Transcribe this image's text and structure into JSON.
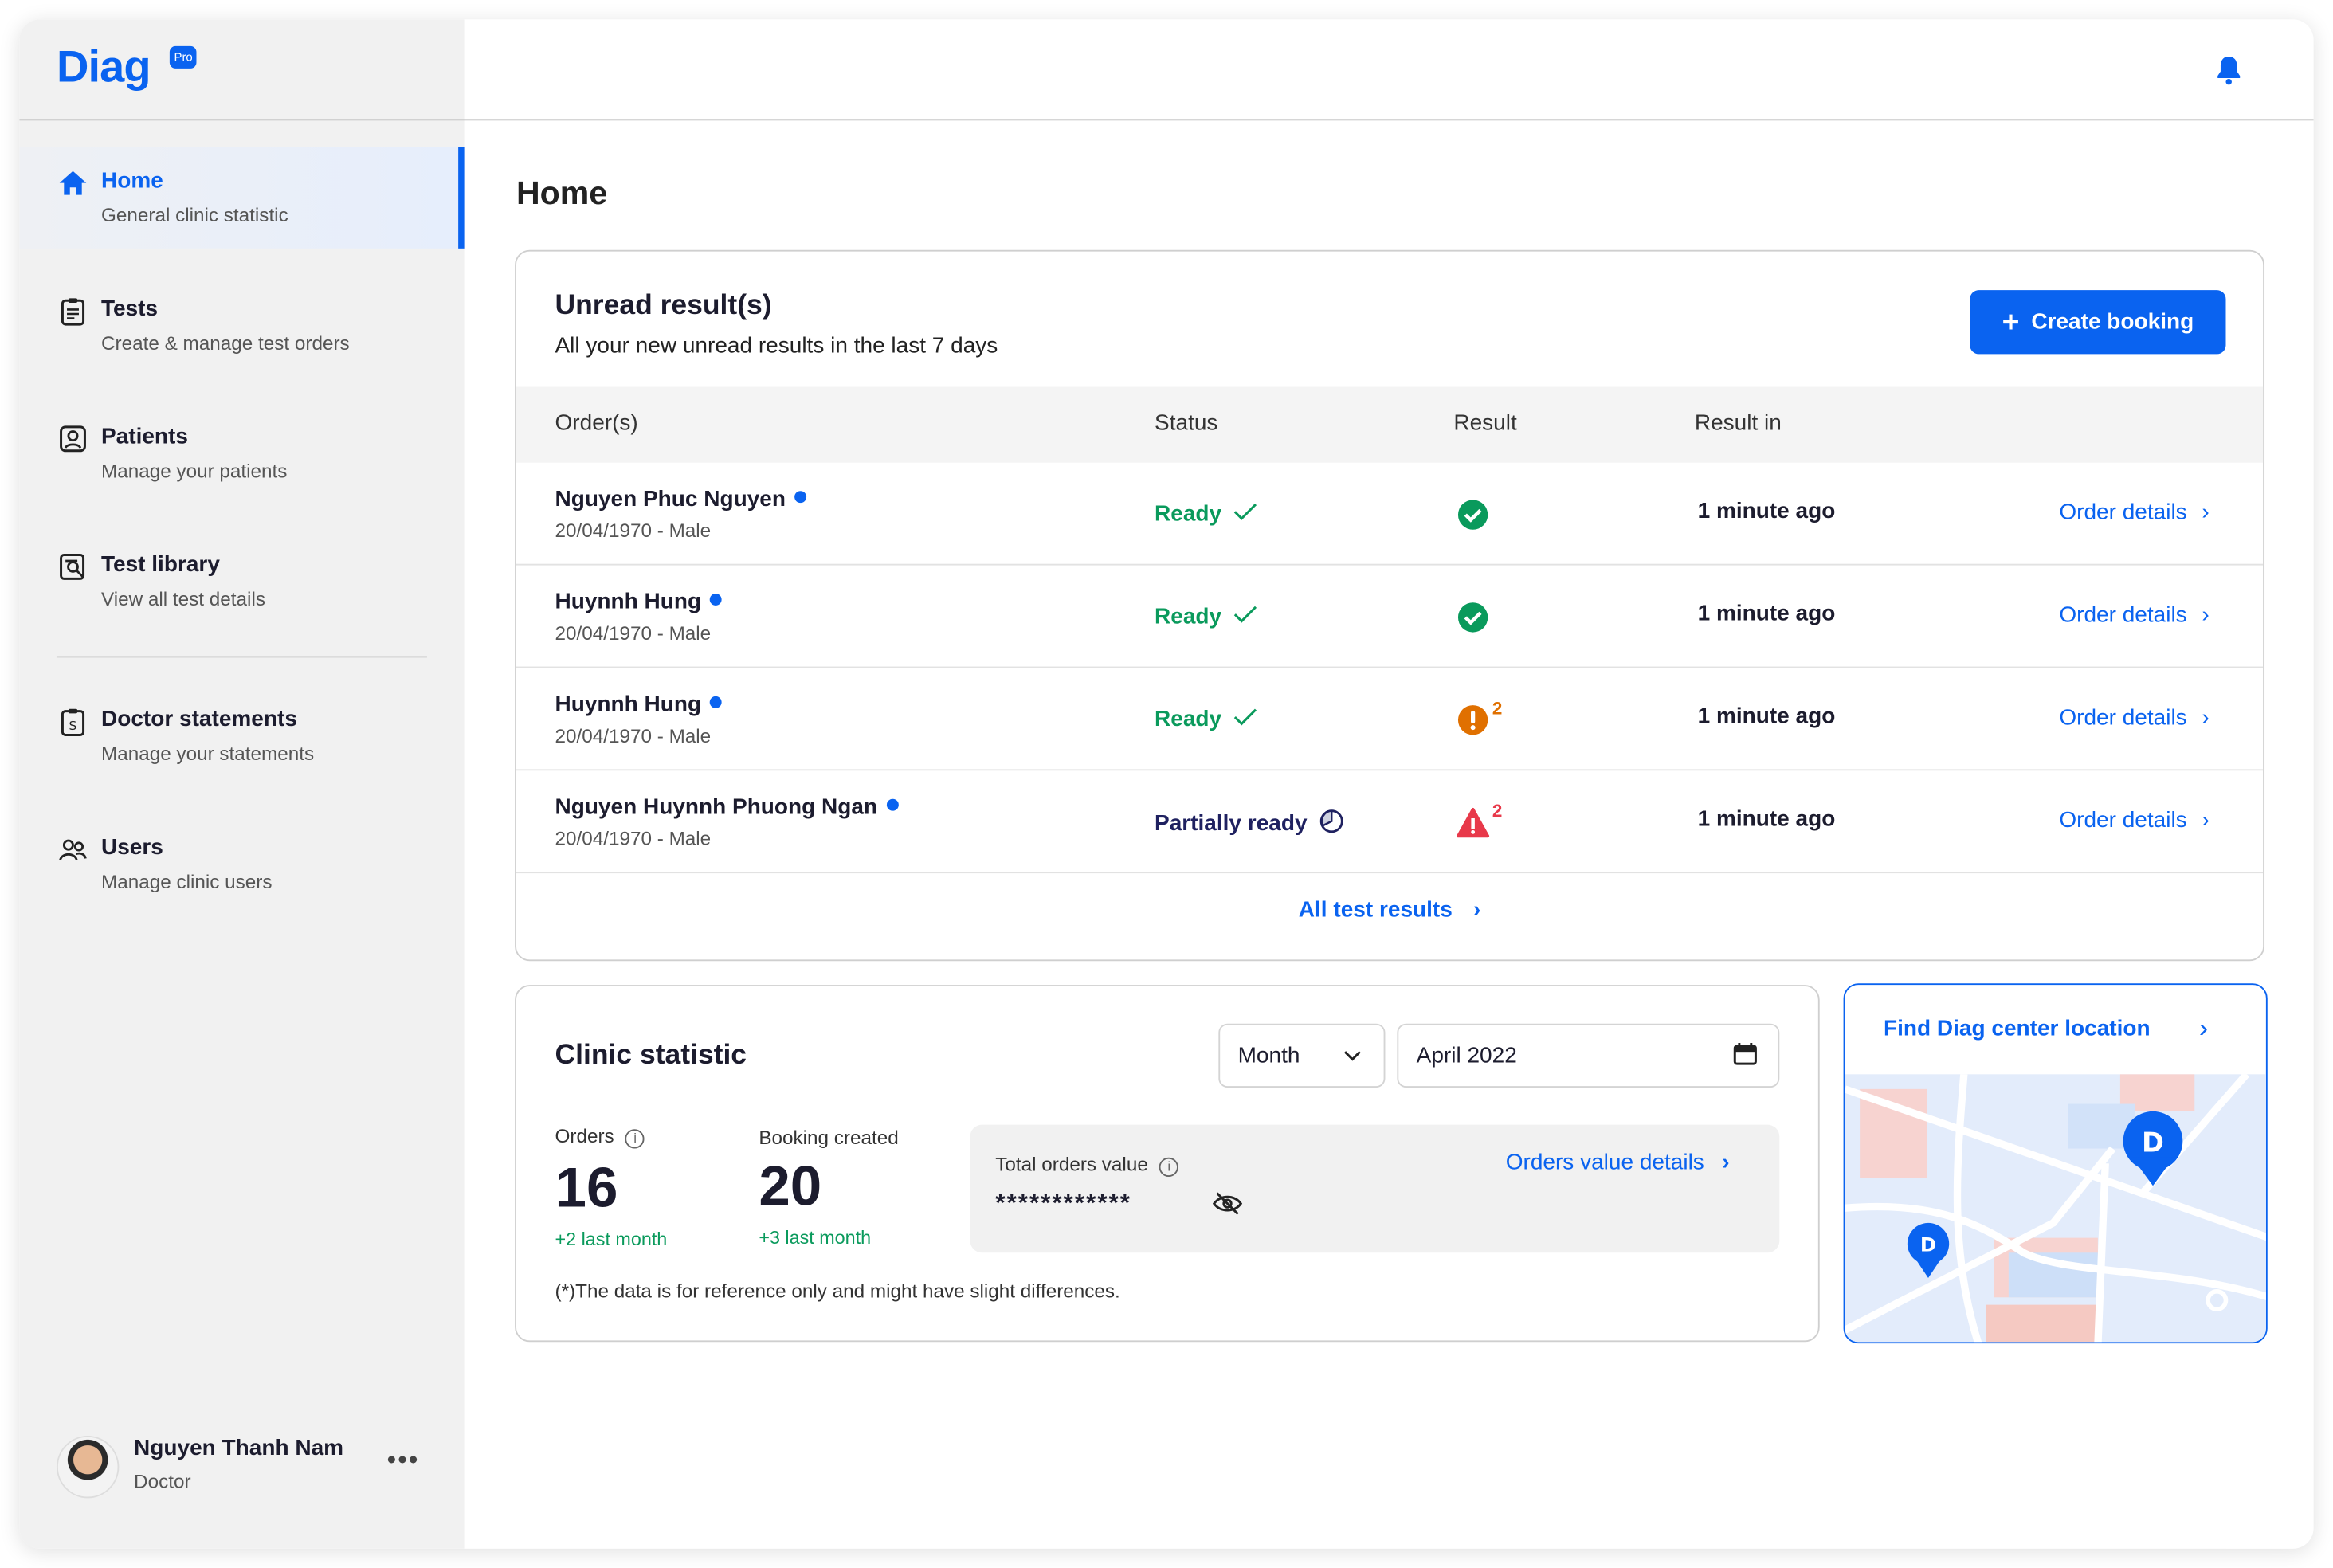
{
  "brand": {
    "name": "Diag",
    "badge": "Pro",
    "accent": "#0a63f0"
  },
  "sidebar": {
    "items": [
      {
        "label": "Home",
        "desc": "General clinic statistic",
        "icon": "home-icon",
        "active": true
      },
      {
        "label": "Tests",
        "desc": "Create & manage test orders",
        "icon": "clipboard-icon"
      },
      {
        "label": "Patients",
        "desc": "Manage your patients",
        "icon": "patient-icon"
      },
      {
        "label": "Test library",
        "desc": "View all test details",
        "icon": "library-search-icon"
      },
      {
        "label": "Doctor statements",
        "desc": "Manage your statements",
        "icon": "statement-icon"
      },
      {
        "label": "Users",
        "desc": "Manage clinic users",
        "icon": "users-icon"
      }
    ],
    "user": {
      "name": "Nguyen Thanh Nam",
      "role": "Doctor",
      "more": "•••"
    }
  },
  "header": {
    "icon": "bell-icon"
  },
  "page": {
    "title": "Home"
  },
  "unread": {
    "title": "Unread result(s)",
    "subtitle": "All your new unread results in the last 7 days",
    "create_label": "Create booking",
    "columns": [
      "Order(s)",
      "Status",
      "Result",
      "Result in"
    ],
    "rows": [
      {
        "name": "Nguyen Phuc Nguyen",
        "dob": "20/04/1970 - Male",
        "status": "Ready",
        "result": "ok",
        "count": "",
        "time": "1 minute ago",
        "link": "Order details"
      },
      {
        "name": "Huynnh Hung",
        "dob": "20/04/1970 - Male",
        "status": "Ready",
        "result": "ok",
        "count": "",
        "time": "1 minute ago",
        "link": "Order details"
      },
      {
        "name": "Huynnh Hung",
        "dob": "20/04/1970 - Male",
        "status": "Ready",
        "result": "warning",
        "count": "2",
        "time": "1 minute ago",
        "link": "Order details"
      },
      {
        "name": "Nguyen Huynnh Phuong Ngan",
        "dob": "20/04/1970 - Male",
        "status": "Partially ready",
        "result": "critical",
        "count": "2",
        "time": "1 minute ago",
        "link": "Order details"
      }
    ],
    "all_link": "All test results",
    "colors": {
      "ready": "#0a9a5c",
      "partial": "#1f2160",
      "warning": "#e07000",
      "critical": "#e8394a"
    }
  },
  "stats": {
    "title": "Clinic statistic",
    "period": "Month",
    "date": "April 2022",
    "orders_label": "Orders",
    "orders": "16",
    "orders_delta": "+2 last month",
    "booking_label": "Booking created",
    "booking": "20",
    "booking_delta": "+3 last month",
    "total_label": "Total orders value",
    "total_value": "************",
    "details_link": "Orders value details",
    "footnote": "(*)The data is for reference only and might have slight differences."
  },
  "map": {
    "title": "Find Diag center location"
  }
}
